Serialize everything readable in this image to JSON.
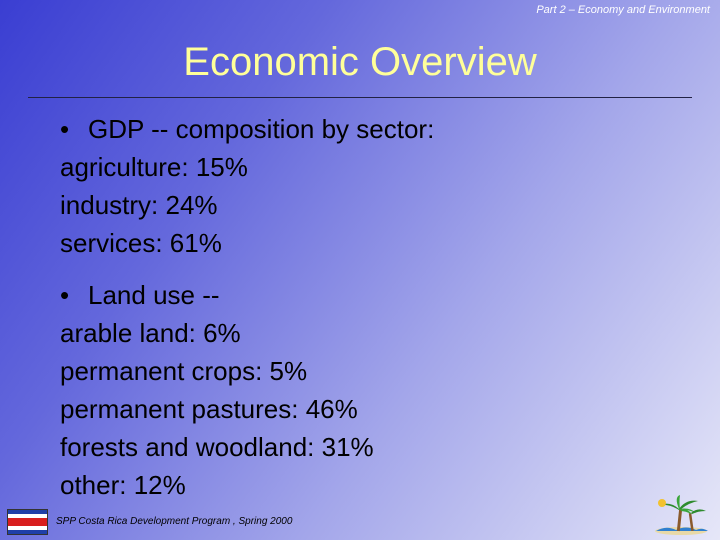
{
  "header_note": "Part 2 – Economy and Environment",
  "title": "Economic Overview",
  "sections": [
    {
      "heading": "GDP -- composition by sector:",
      "lines": [
        "agriculture: 15%",
        "industry: 24%",
        "services: 61%"
      ]
    },
    {
      "heading": "Land use --",
      "lines": [
        "arable land: 6%",
        "permanent crops: 5%",
        "permanent pastures: 46%",
        "forests and woodland: 31%",
        "other: 12%"
      ]
    }
  ],
  "footer": "SPP Costa Rica Development Program , Spring 2000",
  "colors": {
    "title": "#ffff99",
    "flag_blue": "#1f3fa8",
    "flag_red": "#d81e1e"
  },
  "icons": [
    "costa-rica-flag-icon",
    "palm-tree-logo-icon"
  ]
}
